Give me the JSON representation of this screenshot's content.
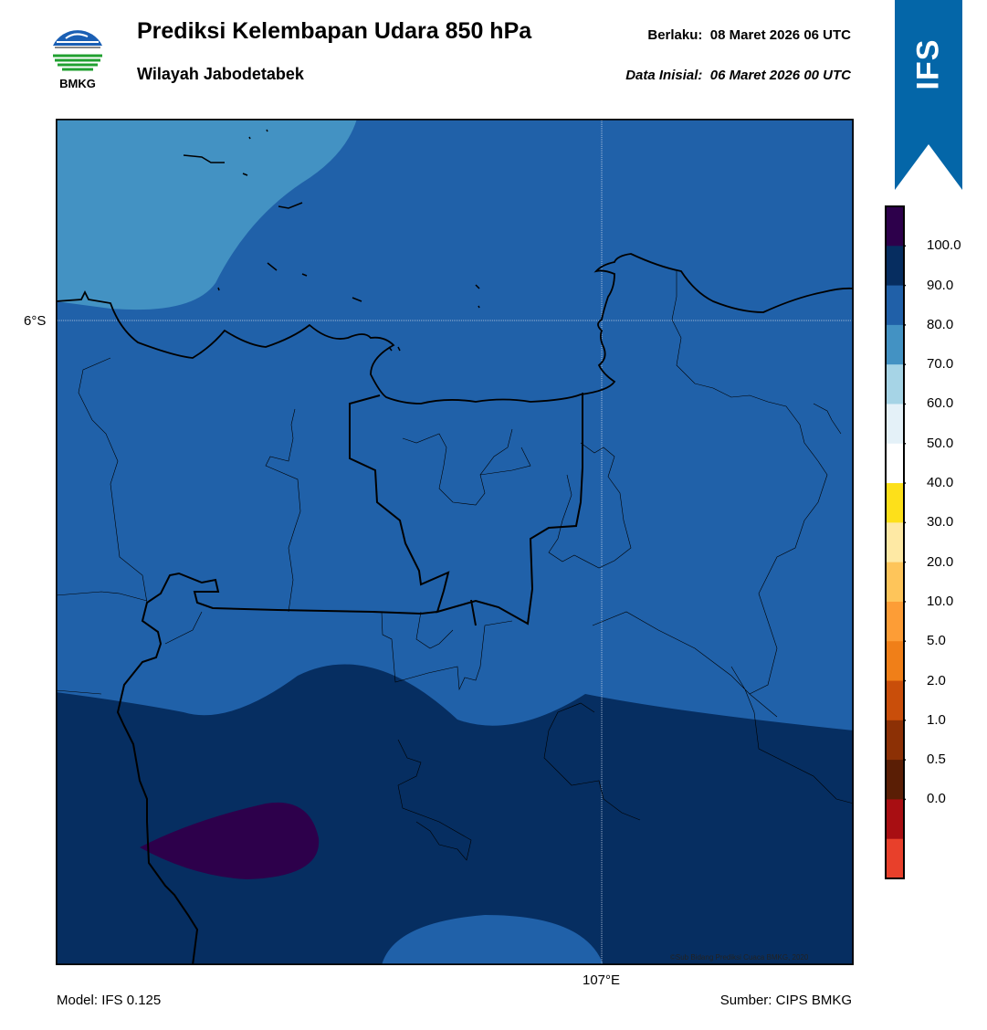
{
  "header": {
    "logo_text": "BMKG",
    "title": "Prediksi Kelembapan Udara 850 hPa",
    "subtitle": "Wilayah Jabodetabek",
    "valid_label": "Berlaku:",
    "valid_time": "08 Maret 2026 06 UTC",
    "init_label": "Data Inisial:",
    "init_time": "06 Maret 2026 00 UTC"
  },
  "ribbon": {
    "text": "IFS",
    "color": "#0466a8"
  },
  "map": {
    "lat_label": "6°S",
    "lon_label": "107°E",
    "copyright": "©Sub Bidang Prediksi Cuaca BMKG, 2020"
  },
  "colorbar": {
    "levels": [
      "100.0",
      "90.0",
      "80.0",
      "70.0",
      "60.0",
      "50.0",
      "40.0",
      "30.0",
      "20.0",
      "10.0",
      "5.0",
      "2.0",
      "1.0",
      "0.5",
      "0.0"
    ],
    "colors_top_to_bottom": [
      "#2d004b",
      "#062d60",
      "#2060a8",
      "#4392c3",
      "#a6d4e6",
      "#e4f1f8",
      "#ffffff",
      "#fde01a",
      "#fee9a4",
      "#fec55a",
      "#fd9d36",
      "#f07f18",
      "#c94e0a",
      "#8c3005",
      "#5a1e05",
      "#a80e12",
      "#e8402b"
    ]
  },
  "footer": {
    "model": "Model: IFS 0.125",
    "source": "Sumber: CIPS BMKG"
  }
}
